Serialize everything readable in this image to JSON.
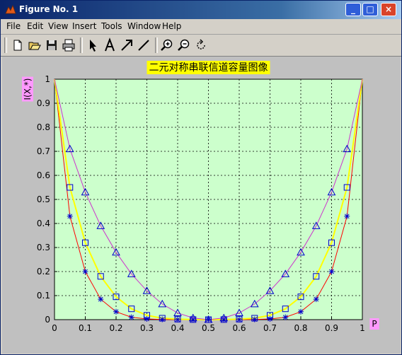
{
  "window": {
    "title": "Figure No. 1",
    "controls": {
      "minimize": "_",
      "maximize": "□",
      "close": "×"
    }
  },
  "menu": {
    "items": [
      "File",
      "Edit",
      "View",
      "Insert",
      "Tools",
      "Window",
      "Help"
    ]
  },
  "toolbar": {
    "icons": [
      "new-file-icon",
      "open-folder-icon",
      "save-icon",
      "print-icon",
      "pointer-arrow-icon",
      "text-tool-icon",
      "arrow-tool-icon",
      "line-tool-icon",
      "zoom-in-icon",
      "zoom-out-icon",
      "rotate-icon"
    ]
  },
  "colors": {
    "plot_bg": "#ccffcc",
    "title_bg": "#ffff00",
    "label_bg": "#ff99ff",
    "series_red": "#ff0000",
    "series_yellow": "#ffff00",
    "series_magenta": "#cc33cc",
    "markers": "#0000cc"
  },
  "chart_data": {
    "type": "line",
    "title": "二元对称串联信道容量图像",
    "xlabel": "P",
    "ylabel": "I(X,*)",
    "xlim": [
      0,
      1
    ],
    "ylim": [
      0,
      1
    ],
    "grid": true,
    "xticks": [
      "0",
      "0.1",
      "0.2",
      "0.3",
      "0.4",
      "0.5",
      "0.6",
      "0.7",
      "0.8",
      "0.9",
      "1"
    ],
    "yticks": [
      "0",
      "0.1",
      "0.2",
      "0.3",
      "0.4",
      "0.5",
      "0.6",
      "0.7",
      "0.8",
      "0.9",
      "1"
    ],
    "series": [
      {
        "marker": "star",
        "color": "#ff0000",
        "x": [
          0.05,
          0.1,
          0.15,
          0.2,
          0.25,
          0.3,
          0.35,
          0.4,
          0.45,
          0.5,
          0.55,
          0.6,
          0.65,
          0.7,
          0.75,
          0.8,
          0.85,
          0.9,
          0.95
        ],
        "y": [
          0.43,
          0.2,
          0.085,
          0.033,
          0.01,
          0.003,
          0.001,
          0.0002,
          0.0,
          0.0,
          0.0,
          0.0002,
          0.001,
          0.003,
          0.01,
          0.033,
          0.085,
          0.2,
          0.43
        ]
      },
      {
        "marker": "square",
        "color": "#ffff00",
        "x": [
          0.05,
          0.1,
          0.15,
          0.2,
          0.25,
          0.3,
          0.35,
          0.4,
          0.45,
          0.5,
          0.55,
          0.6,
          0.65,
          0.7,
          0.75,
          0.8,
          0.85,
          0.9,
          0.95
        ],
        "y": [
          0.55,
          0.32,
          0.18,
          0.095,
          0.045,
          0.018,
          0.006,
          0.002,
          0.0004,
          0.0,
          0.0004,
          0.002,
          0.006,
          0.018,
          0.045,
          0.095,
          0.18,
          0.32,
          0.55
        ]
      },
      {
        "marker": "triangle",
        "color": "#cc33cc",
        "x": [
          0.05,
          0.1,
          0.15,
          0.2,
          0.25,
          0.3,
          0.35,
          0.4,
          0.45,
          0.5,
          0.55,
          0.6,
          0.65,
          0.7,
          0.75,
          0.8,
          0.85,
          0.9,
          0.95
        ],
        "y": [
          0.71,
          0.53,
          0.39,
          0.28,
          0.19,
          0.12,
          0.065,
          0.028,
          0.007,
          0.0,
          0.007,
          0.028,
          0.065,
          0.12,
          0.19,
          0.28,
          0.39,
          0.53,
          0.71
        ]
      }
    ]
  }
}
